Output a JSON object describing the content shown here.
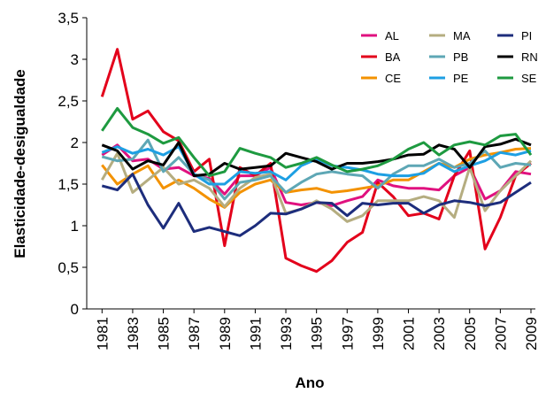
{
  "chart_data": {
    "type": "line",
    "x_label": "Ano",
    "y_label": "Elasticidade-desigualdade",
    "x": [
      1981,
      1982,
      1983,
      1984,
      1985,
      1986,
      1987,
      1988,
      1989,
      1990,
      1991,
      1992,
      1993,
      1994,
      1995,
      1996,
      1997,
      1998,
      1999,
      2000,
      2001,
      2002,
      2003,
      2004,
      2005,
      2006,
      2007,
      2008,
      2009
    ],
    "xlim": [
      1980,
      2009
    ],
    "xticks": [
      1981,
      1983,
      1985,
      1987,
      1989,
      1991,
      1993,
      1995,
      1997,
      1999,
      2001,
      2003,
      2005,
      2007,
      2009
    ],
    "ylim": [
      0,
      3.5
    ],
    "yticks": [
      0,
      {
        "value": 0.5,
        "label": "0,5"
      },
      1,
      {
        "value": 1.5,
        "label": "1,5"
      },
      2,
      {
        "value": 2.5,
        "label": "2,5"
      },
      3,
      {
        "value": 3.5,
        "label": "3,5"
      }
    ],
    "legend": "top-right",
    "series": [
      {
        "name": "AL",
        "color": "#e0117f",
        "values": [
          1.85,
          1.97,
          1.78,
          1.8,
          1.68,
          1.7,
          1.6,
          1.57,
          1.38,
          1.6,
          1.6,
          1.7,
          1.28,
          1.25,
          1.28,
          1.24,
          1.3,
          1.35,
          1.55,
          1.48,
          1.45,
          1.45,
          1.43,
          1.6,
          1.7,
          1.32,
          1.42,
          1.65,
          1.62
        ]
      },
      {
        "name": "BA",
        "color": "#e3001b",
        "values": [
          2.55,
          3.12,
          2.28,
          2.38,
          2.13,
          2.02,
          1.65,
          1.8,
          0.76,
          1.7,
          1.6,
          1.75,
          0.61,
          0.52,
          0.45,
          0.58,
          0.8,
          0.92,
          1.52,
          1.35,
          1.12,
          1.15,
          1.08,
          1.6,
          1.9,
          0.72,
          1.1,
          1.6,
          1.75
        ]
      },
      {
        "name": "CE",
        "color": "#f39200",
        "values": [
          1.73,
          1.5,
          1.62,
          1.72,
          1.45,
          1.55,
          1.45,
          1.32,
          1.22,
          1.4,
          1.5,
          1.55,
          1.4,
          1.43,
          1.45,
          1.4,
          1.42,
          1.45,
          1.48,
          1.55,
          1.55,
          1.65,
          1.75,
          1.7,
          1.8,
          1.85,
          1.88,
          1.92,
          1.93
        ]
      },
      {
        "name": "MA",
        "color": "#b5ad80",
        "values": [
          1.55,
          1.87,
          1.4,
          1.55,
          1.7,
          1.5,
          1.55,
          1.45,
          1.23,
          1.45,
          1.58,
          1.62,
          1.15,
          1.2,
          1.3,
          1.2,
          1.05,
          1.12,
          1.3,
          1.3,
          1.3,
          1.35,
          1.3,
          1.1,
          1.7,
          1.18,
          1.42,
          1.6,
          1.78
        ]
      },
      {
        "name": "PB",
        "color": "#5ea7b5",
        "values": [
          1.83,
          1.78,
          1.8,
          2.03,
          1.65,
          1.82,
          1.62,
          1.55,
          1.32,
          1.52,
          1.55,
          1.6,
          1.4,
          1.52,
          1.62,
          1.65,
          1.62,
          1.6,
          1.45,
          1.62,
          1.72,
          1.72,
          1.8,
          1.7,
          1.75,
          1.9,
          1.7,
          1.75,
          1.73
        ]
      },
      {
        "name": "PE",
        "color": "#1d9fe3",
        "values": [
          1.88,
          1.95,
          1.87,
          1.92,
          1.85,
          1.95,
          1.62,
          1.5,
          1.5,
          1.65,
          1.63,
          1.65,
          1.55,
          1.72,
          1.8,
          1.72,
          1.7,
          1.67,
          1.62,
          1.6,
          1.6,
          1.63,
          1.75,
          1.65,
          1.72,
          1.78,
          1.88,
          1.85,
          1.9
        ]
      },
      {
        "name": "PI",
        "color": "#1d2d7c",
        "values": [
          1.48,
          1.43,
          1.62,
          1.25,
          0.97,
          1.27,
          0.93,
          0.98,
          0.93,
          0.88,
          1.0,
          1.15,
          1.14,
          1.2,
          1.28,
          1.27,
          1.12,
          1.27,
          1.25,
          1.27,
          1.27,
          1.15,
          1.25,
          1.3,
          1.28,
          1.24,
          1.28,
          1.4,
          1.52
        ]
      },
      {
        "name": "RN",
        "color": "#000000",
        "values": [
          1.97,
          1.9,
          1.68,
          1.78,
          1.73,
          2.0,
          1.6,
          1.62,
          1.75,
          1.68,
          1.7,
          1.72,
          1.87,
          1.82,
          1.77,
          1.68,
          1.75,
          1.75,
          1.77,
          1.8,
          1.85,
          1.86,
          1.97,
          1.92,
          1.7,
          1.95,
          1.98,
          2.04,
          1.97
        ]
      },
      {
        "name": "SE",
        "color": "#1e9a40",
        "values": [
          2.14,
          2.41,
          2.18,
          2.1,
          1.99,
          2.06,
          1.82,
          1.6,
          1.65,
          1.93,
          1.87,
          1.82,
          1.7,
          1.75,
          1.82,
          1.73,
          1.65,
          1.68,
          1.72,
          1.8,
          1.92,
          2.0,
          1.85,
          1.97,
          2.01,
          1.97,
          2.08,
          2.1,
          1.85
        ]
      }
    ]
  }
}
